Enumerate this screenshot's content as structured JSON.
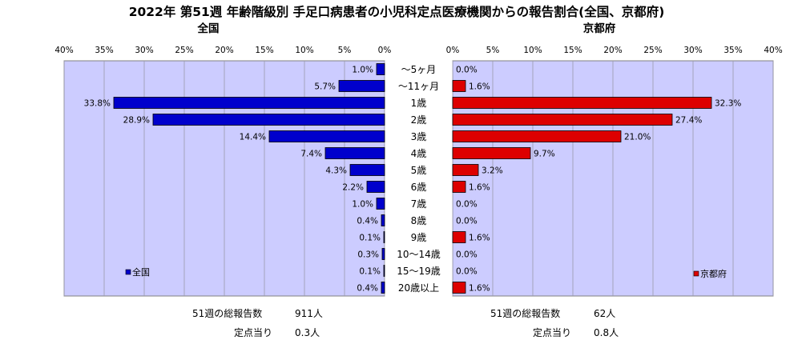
{
  "title": "2022年 第51週  年齢階級別 手足口病患者の小児科定点医療機関からの報告割合(全国、京都府)",
  "colors": {
    "national": "#0000cc",
    "kyoto": "#dd0000",
    "plot_bg": "#ccccff",
    "page_bg": "#ffffff"
  },
  "chart_data": {
    "type": "bar",
    "orientation": "horizontal",
    "categories": [
      "～5ヶ月",
      "～11ヶ月",
      "1歳",
      "2歳",
      "3歳",
      "4歳",
      "5歳",
      "6歳",
      "7歳",
      "8歳",
      "9歳",
      "10～14歳",
      "15～19歳",
      "20歳以上"
    ],
    "xlim": [
      0,
      40
    ],
    "ticks": [
      "0%",
      "5%",
      "10%",
      "15%",
      "20%",
      "25%",
      "30%",
      "35%",
      "40%"
    ],
    "grid": true,
    "series": [
      {
        "name": "全国",
        "panel_title": "全国",
        "legend": "全国",
        "direction": "left",
        "values": [
          1.0,
          5.7,
          33.8,
          28.9,
          14.4,
          7.4,
          4.3,
          2.2,
          1.0,
          0.4,
          0.1,
          0.3,
          0.1,
          0.4
        ],
        "labels": [
          "1.0%",
          "5.7%",
          "33.8%",
          "28.9%",
          "14.4%",
          "7.4%",
          "4.3%",
          "2.2%",
          "1.0%",
          "0.4%",
          "0.1%",
          "0.3%",
          "0.1%",
          "0.4%"
        ]
      },
      {
        "name": "京都府",
        "panel_title": "京都府",
        "legend": "京都府",
        "direction": "right",
        "values": [
          0.0,
          1.6,
          32.3,
          27.4,
          21.0,
          9.7,
          3.2,
          1.6,
          0.0,
          0.0,
          1.6,
          0.0,
          0.0,
          1.6
        ],
        "labels": [
          "0.0%",
          "1.6%",
          "32.3%",
          "27.4%",
          "21.0%",
          "9.7%",
          "3.2%",
          "1.6%",
          "0.0%",
          "0.0%",
          "1.6%",
          "0.0%",
          "0.0%",
          "1.6%"
        ]
      }
    ]
  },
  "footer": {
    "national": {
      "total_label": "51週の総報告数",
      "total_value": "911人",
      "per_label": "定点当り",
      "per_value": "0.3人"
    },
    "kyoto": {
      "total_label": "51週の総報告数",
      "total_value": "62人",
      "per_label": "定点当り",
      "per_value": "0.8人"
    }
  }
}
